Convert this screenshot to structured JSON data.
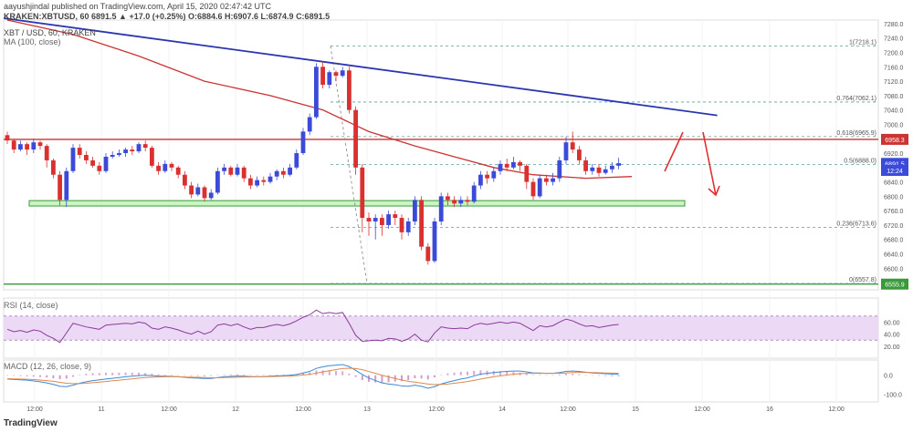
{
  "header": {
    "published": "aayushjindal published on TradingView.com, April 15, 2020 02:47:42 UTC",
    "symbol_line": "KRAKEN:XBTUSD, 60  6891.5  ▲ +17.0 (+0.25%)  O:6884.6  H:6907.6  L:6874.9  C:6891.5",
    "pair": "XBT / USD, 60, KRAKEN",
    "ma": "MA (100, close)",
    "rsi": "RSI (14, close)",
    "macd": "MACD (12, 26, close, 9)"
  },
  "footer": {
    "logo": "TradingView"
  },
  "colors": {
    "up": "#3b4bd8",
    "down": "#d93030",
    "ma": "#cc3333",
    "trend": "#2b35b0",
    "fib": "#5aa0a0",
    "support_fill": "#c8f5c0",
    "support_line": "#3a9a3a",
    "resistance": "#cc3333",
    "rsi_band": "#ecd9f5",
    "rsi_line": "#8a3a9a",
    "macd_line": "#3a8ad8",
    "signal_line": "#e0884a"
  },
  "chart_data": {
    "type": "candlestick",
    "y_price_range": [
      6540,
      7290
    ],
    "y_ticks": [
      "7280.0",
      "7240.0",
      "7200.0",
      "7160.0",
      "7120.0",
      "7080.0",
      "7040.0",
      "7000.0",
      "6960.0",
      "6920.0",
      "6880.0",
      "6840.0",
      "6800.0",
      "6760.0",
      "6720.0",
      "6680.0",
      "6640.0",
      "6600.0",
      "6560.0"
    ],
    "x_ticks": [
      "12:00",
      "11",
      "12:00",
      "12",
      "12:00",
      "13",
      "12:00",
      "14",
      "12:00",
      "15",
      "12:00",
      "16",
      "12:00"
    ],
    "price_labels": [
      {
        "text": "6958.3",
        "value": 6958.3,
        "color": "#cc3333"
      },
      {
        "text": "6891.5",
        "value": 6891.5,
        "color": "#3b4bd8"
      },
      {
        "text": "12:24",
        "value": 6872,
        "color": "#3b4bd8"
      },
      {
        "text": "6555.9",
        "value": 6555.9,
        "color": "#3a9a3a"
      }
    ],
    "fib_levels": [
      {
        "label": "1(7218.1)",
        "value": 7218.1
      },
      {
        "label": "0.764(7062.1)",
        "value": 7062.1
      },
      {
        "label": "0.618(6965.9)",
        "value": 6965.9
      },
      {
        "label": "0.5(6888.0)",
        "value": 6888.0
      },
      {
        "label": "0.236(6713.6)",
        "value": 6713.6
      },
      {
        "label": "0(6557.8)",
        "value": 6557.8
      }
    ],
    "resistance": 6958.3,
    "support_zone": [
      6773,
      6788
    ],
    "lower_support": 6555.9,
    "trendline": [
      [
        0,
        7295
      ],
      [
        108,
        7025
      ]
    ],
    "ma_points": [
      [
        0,
        7290
      ],
      [
        10,
        7250
      ],
      [
        20,
        7190
      ],
      [
        30,
        7120
      ],
      [
        40,
        7080
      ],
      [
        48,
        7040
      ],
      [
        55,
        6980
      ],
      [
        62,
        6940
      ],
      [
        68,
        6910
      ],
      [
        74,
        6880
      ],
      [
        80,
        6860
      ],
      [
        88,
        6850
      ],
      [
        95,
        6855
      ]
    ],
    "candles": [
      [
        6970,
        6955,
        6980,
        6945
      ],
      [
        6955,
        6930,
        6960,
        6920
      ],
      [
        6930,
        6945,
        6955,
        6925
      ],
      [
        6945,
        6930,
        6950,
        6915
      ],
      [
        6930,
        6950,
        6960,
        6920
      ],
      [
        6950,
        6940,
        6955,
        6930
      ],
      [
        6940,
        6900,
        6945,
        6880
      ],
      [
        6900,
        6860,
        6905,
        6850
      ],
      [
        6860,
        6790,
        6870,
        6775
      ],
      [
        6790,
        6870,
        6880,
        6770
      ],
      [
        6870,
        6935,
        6945,
        6865
      ],
      [
        6935,
        6915,
        6945,
        6905
      ],
      [
        6915,
        6900,
        6925,
        6890
      ],
      [
        6900,
        6885,
        6910,
        6880
      ],
      [
        6885,
        6870,
        6895,
        6860
      ],
      [
        6870,
        6910,
        6920,
        6865
      ],
      [
        6910,
        6915,
        6925,
        6905
      ],
      [
        6915,
        6920,
        6930,
        6910
      ],
      [
        6920,
        6930,
        6935,
        6910
      ],
      [
        6930,
        6925,
        6940,
        6915
      ],
      [
        6925,
        6945,
        6950,
        6920
      ],
      [
        6945,
        6935,
        6955,
        6925
      ],
      [
        6935,
        6885,
        6940,
        6880
      ],
      [
        6885,
        6870,
        6895,
        6860
      ],
      [
        6870,
        6890,
        6900,
        6865
      ],
      [
        6890,
        6880,
        6895,
        6870
      ],
      [
        6880,
        6860,
        6885,
        6850
      ],
      [
        6860,
        6830,
        6870,
        6820
      ],
      [
        6830,
        6805,
        6840,
        6795
      ],
      [
        6805,
        6825,
        6835,
        6800
      ],
      [
        6825,
        6795,
        6830,
        6785
      ],
      [
        6795,
        6810,
        6820,
        6790
      ],
      [
        6810,
        6870,
        6880,
        6805
      ],
      [
        6870,
        6880,
        6890,
        6860
      ],
      [
        6880,
        6860,
        6885,
        6855
      ],
      [
        6860,
        6880,
        6890,
        6855
      ],
      [
        6880,
        6850,
        6885,
        6840
      ],
      [
        6850,
        6830,
        6860,
        6820
      ],
      [
        6830,
        6845,
        6855,
        6825
      ],
      [
        6845,
        6840,
        6855,
        6830
      ],
      [
        6840,
        6855,
        6865,
        6835
      ],
      [
        6855,
        6870,
        6875,
        6845
      ],
      [
        6870,
        6860,
        6880,
        6850
      ],
      [
        6860,
        6880,
        6890,
        6855
      ],
      [
        6880,
        6920,
        6930,
        6875
      ],
      [
        6920,
        6980,
        6990,
        6915
      ],
      [
        6980,
        7020,
        7030,
        6970
      ],
      [
        7020,
        7160,
        7170,
        7015
      ],
      [
        7160,
        7110,
        7175,
        7100
      ],
      [
        7110,
        7145,
        7150,
        7100
      ],
      [
        7145,
        7135,
        7150,
        7120
      ],
      [
        7135,
        7150,
        7160,
        7130
      ],
      [
        7150,
        7040,
        7160,
        7030
      ],
      [
        7040,
        6880,
        7050,
        6860
      ],
      [
        6880,
        6740,
        6890,
        6700
      ],
      [
        6740,
        6730,
        6755,
        6690
      ],
      [
        6730,
        6740,
        6750,
        6680
      ],
      [
        6740,
        6720,
        6750,
        6690
      ],
      [
        6720,
        6750,
        6760,
        6710
      ],
      [
        6750,
        6740,
        6760,
        6720
      ],
      [
        6740,
        6700,
        6750,
        6680
      ],
      [
        6700,
        6730,
        6740,
        6690
      ],
      [
        6730,
        6790,
        6800,
        6720
      ],
      [
        6790,
        6660,
        6800,
        6650
      ],
      [
        6660,
        6620,
        6670,
        6610
      ],
      [
        6620,
        6730,
        6740,
        6615
      ],
      [
        6730,
        6800,
        6810,
        6720
      ],
      [
        6800,
        6790,
        6810,
        6775
      ],
      [
        6790,
        6780,
        6800,
        6770
      ],
      [
        6780,
        6790,
        6800,
        6770
      ],
      [
        6790,
        6785,
        6800,
        6775
      ],
      [
        6785,
        6830,
        6840,
        6780
      ],
      [
        6830,
        6860,
        6870,
        6820
      ],
      [
        6860,
        6850,
        6870,
        6835
      ],
      [
        6850,
        6870,
        6880,
        6840
      ],
      [
        6870,
        6890,
        6900,
        6860
      ],
      [
        6890,
        6880,
        6905,
        6870
      ],
      [
        6880,
        6895,
        6910,
        6875
      ],
      [
        6895,
        6885,
        6900,
        6870
      ],
      [
        6885,
        6840,
        6890,
        6820
      ],
      [
        6840,
        6800,
        6850,
        6790
      ],
      [
        6800,
        6850,
        6860,
        6795
      ],
      [
        6850,
        6840,
        6860,
        6830
      ],
      [
        6840,
        6850,
        6865,
        6830
      ],
      [
        6850,
        6900,
        6910,
        6840
      ],
      [
        6900,
        6950,
        6965,
        6890
      ],
      [
        6950,
        6930,
        6980,
        6920
      ],
      [
        6930,
        6900,
        6940,
        6890
      ],
      [
        6900,
        6870,
        6910,
        6860
      ],
      [
        6870,
        6880,
        6890,
        6860
      ],
      [
        6880,
        6865,
        6890,
        6855
      ],
      [
        6865,
        6875,
        6885,
        6860
      ],
      [
        6875,
        6885,
        6895,
        6865
      ],
      [
        6885,
        6892,
        6907,
        6875
      ]
    ],
    "rsi": [
      48,
      44,
      46,
      43,
      47,
      45,
      38,
      33,
      26,
      42,
      58,
      55,
      52,
      50,
      48,
      55,
      56,
      57,
      58,
      57,
      60,
      58,
      50,
      48,
      52,
      50,
      47,
      43,
      40,
      45,
      40,
      44,
      55,
      57,
      54,
      57,
      52,
      48,
      51,
      51,
      54,
      56,
      54,
      57,
      62,
      68,
      72,
      80,
      74,
      76,
      74,
      76,
      58,
      38,
      28,
      29,
      30,
      29,
      33,
      32,
      28,
      32,
      40,
      30,
      27,
      42,
      52,
      50,
      49,
      50,
      49,
      55,
      58,
      56,
      58,
      60,
      58,
      60,
      58,
      52,
      46,
      54,
      52,
      54,
      60,
      65,
      62,
      57,
      53,
      54,
      51,
      53,
      55,
      56
    ],
    "rsi_range": [
      0,
      100
    ],
    "rsi_ticks": [
      "60.00",
      "40.00",
      "20.00"
    ],
    "rsi_bands": [
      30,
      70
    ],
    "macd_ticks": [
      "0.0",
      "-100.0"
    ],
    "macd_range": [
      -140,
      80
    ],
    "macd": [
      -20,
      -22,
      -24,
      -26,
      -30,
      -34,
      -40,
      -48,
      -58,
      -60,
      -52,
      -42,
      -34,
      -28,
      -24,
      -20,
      -16,
      -12,
      -8,
      -5,
      -2,
      0,
      -2,
      -4,
      -5,
      -6,
      -8,
      -11,
      -14,
      -15,
      -17,
      -17,
      -12,
      -8,
      -6,
      -4,
      -5,
      -7,
      -7,
      -7,
      -5,
      -3,
      -2,
      0,
      4,
      12,
      20,
      36,
      44,
      50,
      53,
      56,
      46,
      26,
      4,
      -14,
      -28,
      -40,
      -46,
      -50,
      -56,
      -58,
      -52,
      -58,
      -68,
      -60,
      -46,
      -36,
      -28,
      -20,
      -14,
      -4,
      6,
      10,
      14,
      18,
      20,
      22,
      22,
      18,
      12,
      12,
      10,
      10,
      14,
      20,
      22,
      20,
      16,
      12,
      10,
      8,
      6,
      5
    ],
    "signal": [
      -18,
      -19,
      -20,
      -21,
      -23,
      -25,
      -28,
      -32,
      -37,
      -42,
      -44,
      -44,
      -42,
      -39,
      -36,
      -33,
      -29,
      -26,
      -22,
      -19,
      -15,
      -12,
      -10,
      -9,
      -8,
      -8,
      -8,
      -9,
      -10,
      -11,
      -12,
      -13,
      -13,
      -12,
      -11,
      -10,
      -9,
      -9,
      -8,
      -8,
      -7,
      -6,
      -5,
      -4,
      -2,
      1,
      5,
      11,
      18,
      24,
      30,
      35,
      37,
      35,
      29,
      20,
      10,
      0,
      -9,
      -17,
      -25,
      -32,
      -36,
      -41,
      -46,
      -49,
      -48,
      -46,
      -42,
      -38,
      -33,
      -27,
      -20,
      -14,
      -8,
      -3,
      1,
      5,
      8,
      10,
      10,
      10,
      10,
      10,
      10,
      12,
      14,
      15,
      15,
      14,
      13,
      12,
      11,
      10
    ]
  }
}
